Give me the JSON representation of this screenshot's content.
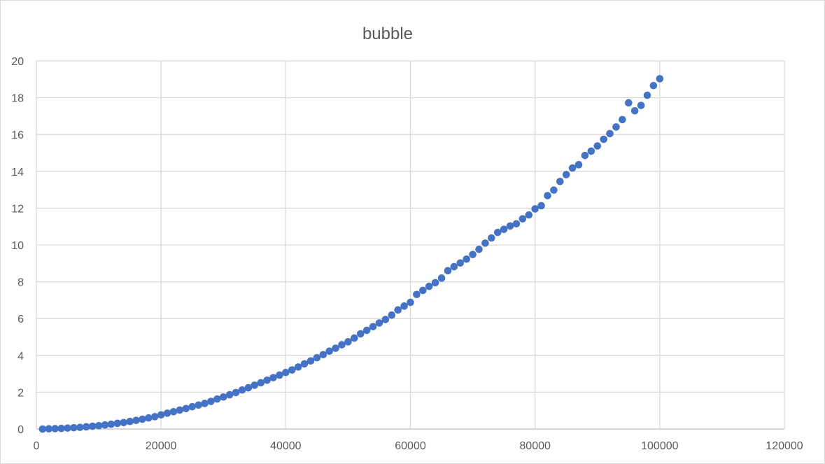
{
  "chart_data": {
    "type": "scatter",
    "title": "bubble",
    "xlabel": "",
    "ylabel": "",
    "xlim": [
      0,
      120000
    ],
    "ylim": [
      0,
      20
    ],
    "x_ticks": [
      "0",
      "20000",
      "40000",
      "60000",
      "80000",
      "100000",
      "120000"
    ],
    "y_ticks": [
      "0",
      "2",
      "4",
      "6",
      "8",
      "10",
      "12",
      "14",
      "16",
      "18",
      "20"
    ],
    "grid": true,
    "legend": "none",
    "marker_color": "#4472c4",
    "series": [
      {
        "x": [
          1000,
          2000,
          3000,
          4000,
          5000,
          6000,
          7000,
          8000,
          9000,
          10000,
          11000,
          12000,
          13000,
          14000,
          15000,
          16000,
          17000,
          18000,
          19000,
          20000,
          21000,
          22000,
          23000,
          24000,
          25000,
          26000,
          27000,
          28000,
          29000,
          30000,
          31000,
          32000,
          33000,
          34000,
          35000,
          36000,
          37000,
          38000,
          39000,
          40000,
          41000,
          42000,
          43000,
          44000,
          45000,
          46000,
          47000,
          48000,
          49000,
          50000,
          51000,
          52000,
          53000,
          54000,
          55000,
          56000,
          57000,
          58000,
          59000,
          60000,
          61000,
          62000,
          63000,
          64000,
          65000,
          66000,
          67000,
          68000,
          69000,
          70000,
          71000,
          72000,
          73000,
          74000,
          75000,
          76000,
          77000,
          78000,
          79000,
          80000,
          81000,
          82000,
          83000,
          84000,
          85000,
          86000,
          87000,
          88000,
          89000,
          90000,
          91000,
          92000,
          93000,
          94000,
          95000,
          96000,
          97000,
          98000,
          99000,
          100000
        ],
        "y": [
          0.0,
          0.01,
          0.02,
          0.03,
          0.05,
          0.07,
          0.09,
          0.12,
          0.15,
          0.18,
          0.22,
          0.26,
          0.31,
          0.35,
          0.41,
          0.47,
          0.53,
          0.6,
          0.67,
          0.77,
          0.86,
          0.94,
          1.03,
          1.11,
          1.21,
          1.3,
          1.39,
          1.5,
          1.63,
          1.74,
          1.86,
          1.98,
          2.12,
          2.24,
          2.38,
          2.51,
          2.65,
          2.79,
          2.93,
          3.07,
          3.21,
          3.37,
          3.54,
          3.7,
          3.87,
          4.04,
          4.23,
          4.39,
          4.58,
          4.74,
          4.94,
          5.17,
          5.36,
          5.56,
          5.76,
          5.95,
          6.19,
          6.47,
          6.68,
          6.88,
          7.31,
          7.53,
          7.75,
          7.95,
          8.2,
          8.6,
          8.82,
          9.02,
          9.23,
          9.48,
          9.76,
          10.1,
          10.38,
          10.68,
          10.85,
          11.03,
          11.15,
          11.42,
          11.63,
          11.96,
          12.13,
          12.68,
          12.98,
          13.45,
          13.82,
          14.18,
          14.36,
          14.86,
          15.1,
          15.38,
          15.74,
          16.05,
          16.41,
          16.81,
          17.72,
          17.29,
          17.58,
          18.13,
          18.66,
          19.03
        ]
      }
    ]
  }
}
